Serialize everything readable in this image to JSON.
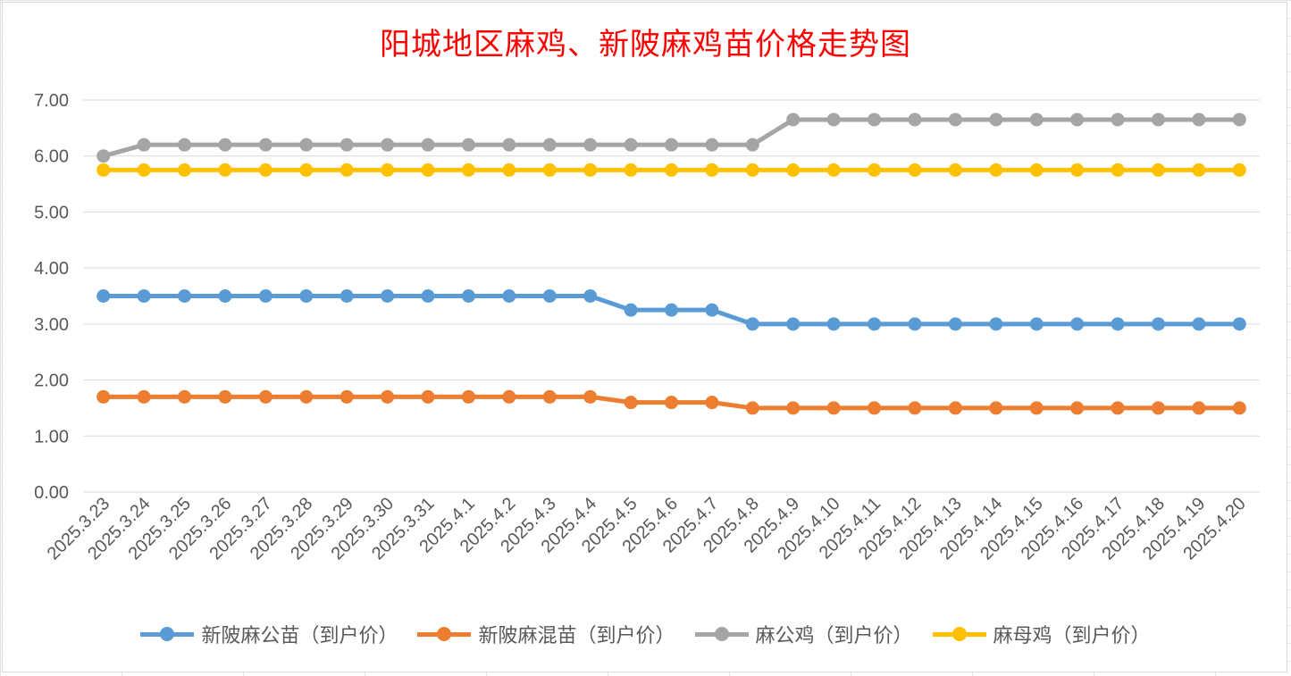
{
  "chart_data": {
    "type": "line",
    "title": "阳城地区麻鸡、新陂麻鸡苗价格走势图",
    "title_color": "#ff0000",
    "categories": [
      "2025.3.23",
      "2025.3.24",
      "2025.3.25",
      "2025.3.26",
      "2025.3.27",
      "2025.3.28",
      "2025.3.29",
      "2025.3.30",
      "2025.3.31",
      "2025.4.1",
      "2025.4.2",
      "2025.4.3",
      "2025.4.4",
      "2025.4.5",
      "2025.4.6",
      "2025.4.7",
      "2025.4.8",
      "2025.4.9",
      "2025.4.10",
      "2025.4.11",
      "2025.4.12",
      "2025.4.13",
      "2025.4.14",
      "2025.4.15",
      "2025.4.16",
      "2025.4.17",
      "2025.4.18",
      "2025.4.19",
      "2025.4.20"
    ],
    "ylim": [
      0,
      7
    ],
    "yticks": [
      "0.00",
      "1.00",
      "2.00",
      "3.00",
      "4.00",
      "5.00",
      "6.00",
      "7.00"
    ],
    "grid": true,
    "legend_position": "bottom",
    "series": [
      {
        "name": "新陂麻公苗（到户价）",
        "color": "#5b9bd5",
        "values": [
          3.5,
          3.5,
          3.5,
          3.5,
          3.5,
          3.5,
          3.5,
          3.5,
          3.5,
          3.5,
          3.5,
          3.5,
          3.5,
          3.25,
          3.25,
          3.25,
          3.0,
          3.0,
          3.0,
          3.0,
          3.0,
          3.0,
          3.0,
          3.0,
          3.0,
          3.0,
          3.0,
          3.0,
          3.0
        ]
      },
      {
        "name": "新陂麻混苗（到户价）",
        "color": "#ed7d31",
        "values": [
          1.7,
          1.7,
          1.7,
          1.7,
          1.7,
          1.7,
          1.7,
          1.7,
          1.7,
          1.7,
          1.7,
          1.7,
          1.7,
          1.6,
          1.6,
          1.6,
          1.5,
          1.5,
          1.5,
          1.5,
          1.5,
          1.5,
          1.5,
          1.5,
          1.5,
          1.5,
          1.5,
          1.5,
          1.5
        ]
      },
      {
        "name": "麻公鸡（到户价）",
        "color": "#a5a5a5",
        "values": [
          6.0,
          6.2,
          6.2,
          6.2,
          6.2,
          6.2,
          6.2,
          6.2,
          6.2,
          6.2,
          6.2,
          6.2,
          6.2,
          6.2,
          6.2,
          6.2,
          6.2,
          6.65,
          6.65,
          6.65,
          6.65,
          6.65,
          6.65,
          6.65,
          6.65,
          6.65,
          6.65,
          6.65,
          6.65
        ]
      },
      {
        "name": "麻母鸡（到户价）",
        "color": "#ffc000",
        "values": [
          5.75,
          5.75,
          5.75,
          5.75,
          5.75,
          5.75,
          5.75,
          5.75,
          5.75,
          5.75,
          5.75,
          5.75,
          5.75,
          5.75,
          5.75,
          5.75,
          5.75,
          5.75,
          5.75,
          5.75,
          5.75,
          5.75,
          5.75,
          5.75,
          5.75,
          5.75,
          5.75,
          5.75,
          5.75
        ]
      }
    ]
  }
}
